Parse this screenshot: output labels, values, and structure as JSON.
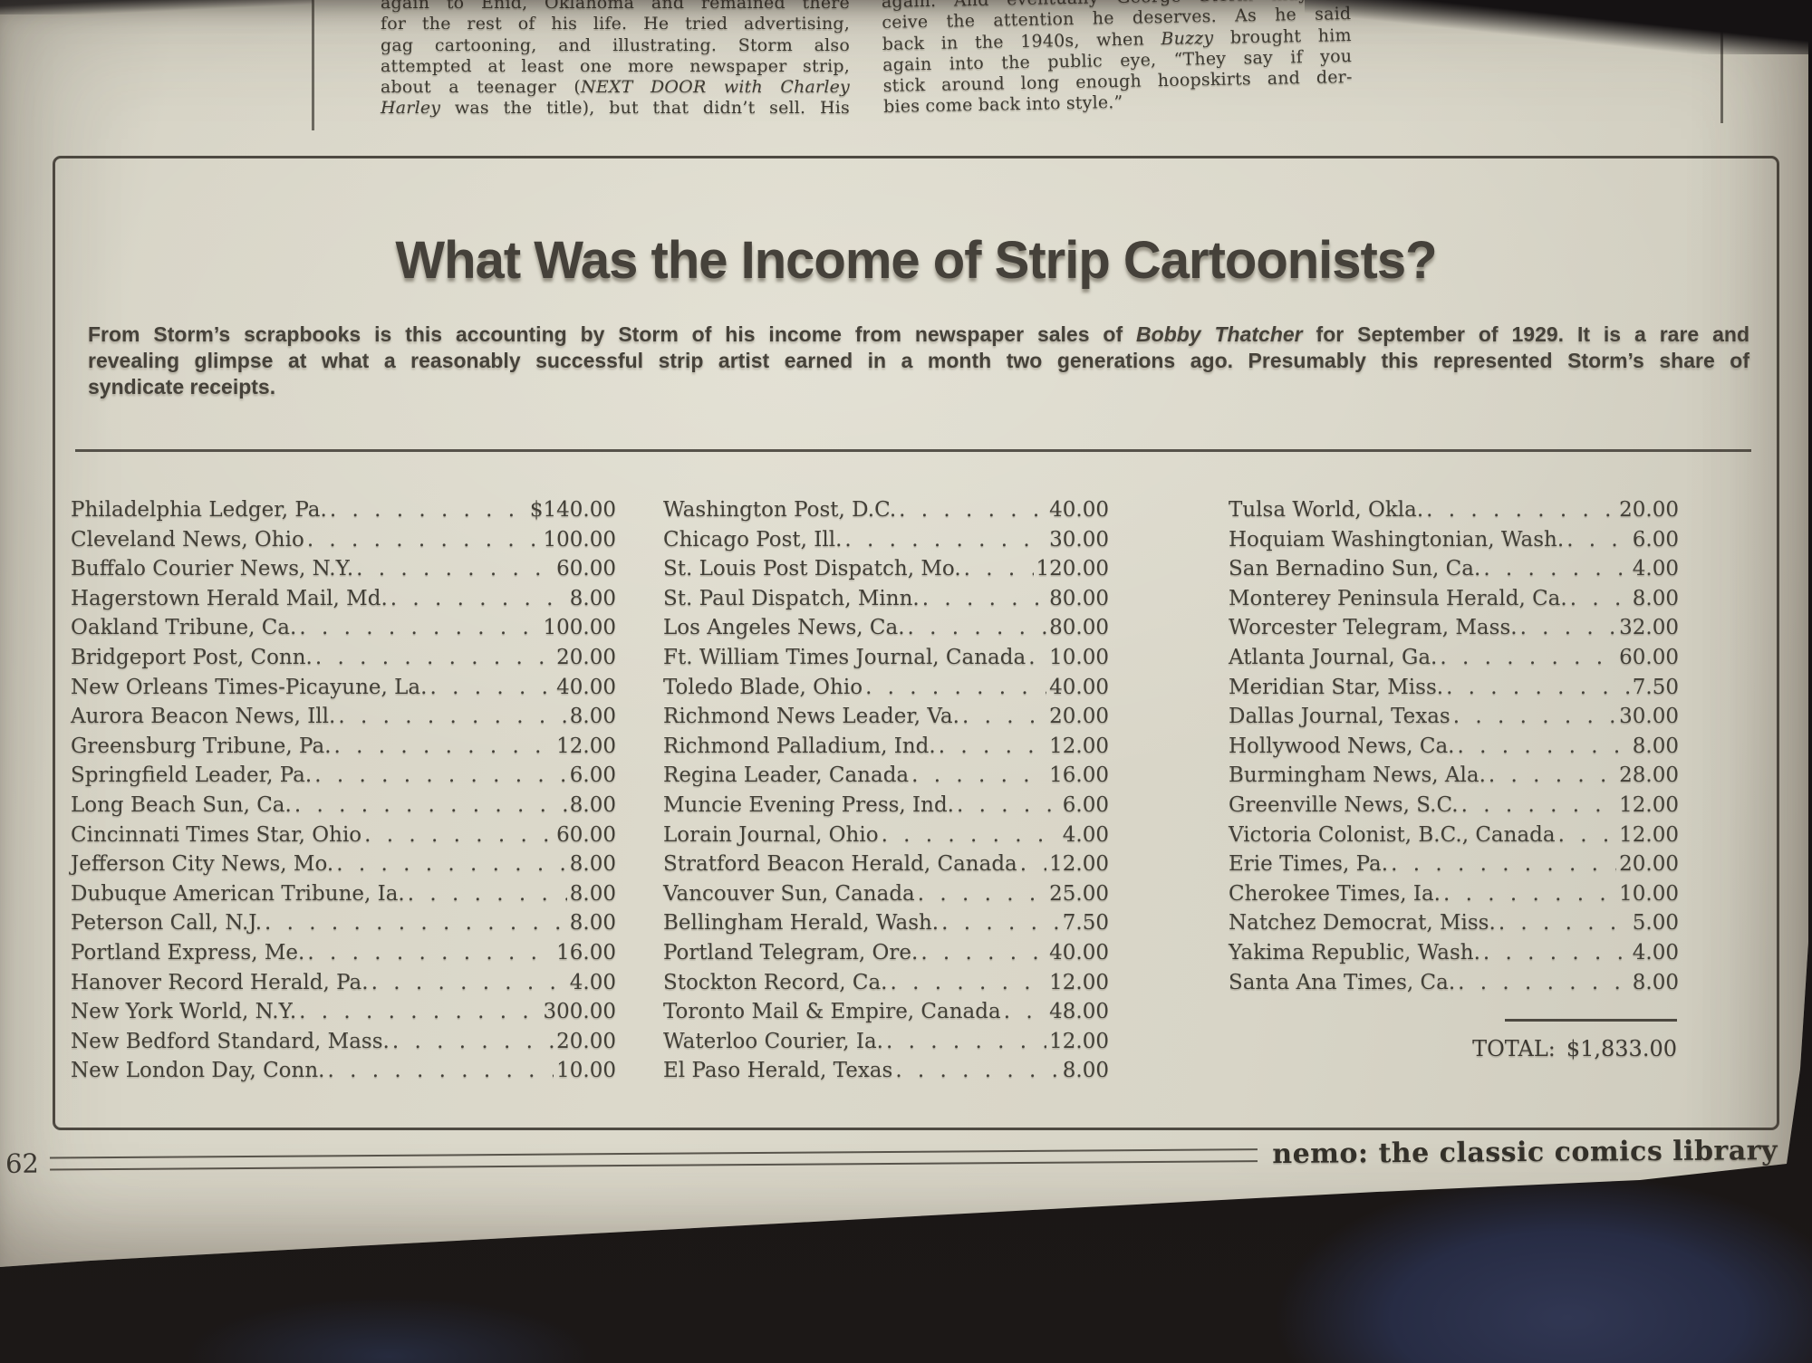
{
  "colors": {
    "paper": "#d8d5c7",
    "ink": "#45413a",
    "background": "#141112",
    "fabric_blue": "#2c3148"
  },
  "top_article": {
    "left_lines": [
      "again to Enid, Oklahoma and remained there",
      "for the rest of his life. He tried advertising,",
      "gag cartooning, and illustrating. Storm also",
      "attempted at least one more newspaper strip,",
      "about a teenager (*NEXT DOOR* *with* *Charley*",
      "*Harley* was the title), but that didn’t sell. His"
    ],
    "right_lines": [
      "again. And eventually George Storm may re-",
      "ceive the attention he deserves. As he said",
      "back in the 1940s, when *Buzzy* brought him",
      "again into the public eye, “They say if you",
      "stick around long enough hoopskirts and der-",
      "bies come back into style.”"
    ]
  },
  "income_box": {
    "title": "What Was the Income of Strip Cartoonists?",
    "intro_lines": [
      "From Storm’s scrapbooks is this accounting by Storm of his income from newspaper sales of *Bobby Thatcher* for September of 1929. It is a rare and",
      "revealing glimpse at what a reasonably successful strip artist earned in a month two generations ago. Presumably this represented Storm’s share of",
      "syndicate receipts."
    ],
    "columns": [
      [
        {
          "name": "Philadelphia Ledger, Pa.",
          "amount": "$140.00"
        },
        {
          "name": "Cleveland News, Ohio",
          "amount": "100.00"
        },
        {
          "name": "Buffalo Courier News, N.Y.",
          "amount": "60.00"
        },
        {
          "name": "Hagerstown Herald Mail, Md.",
          "amount": "8.00"
        },
        {
          "name": "Oakland Tribune, Ca.",
          "amount": "100.00"
        },
        {
          "name": "Bridgeport Post, Conn.",
          "amount": "20.00"
        },
        {
          "name": "New Orleans Times-Picayune, La.",
          "amount": "40.00"
        },
        {
          "name": "Aurora Beacon News, Ill.",
          "amount": "8.00"
        },
        {
          "name": "Greensburg Tribune, Pa.",
          "amount": "12.00"
        },
        {
          "name": "Springfield Leader, Pa.",
          "amount": "6.00"
        },
        {
          "name": "Long Beach Sun, Ca.",
          "amount": "8.00"
        },
        {
          "name": "Cincinnati Times Star, Ohio",
          "amount": "60.00"
        },
        {
          "name": "Jefferson City News, Mo.",
          "amount": "8.00"
        },
        {
          "name": "Dubuque American Tribune, Ia.",
          "amount": "8.00"
        },
        {
          "name": "Peterson Call, N.J.",
          "amount": "8.00"
        },
        {
          "name": "Portland Express, Me.",
          "amount": "16.00"
        },
        {
          "name": "Hanover Record Herald, Pa.",
          "amount": "4.00"
        },
        {
          "name": "New York World, N.Y.",
          "amount": "300.00"
        },
        {
          "name": "New Bedford Standard, Mass.",
          "amount": "20.00"
        },
        {
          "name": "New London Day, Conn.",
          "amount": "10.00"
        }
      ],
      [
        {
          "name": "Washington Post, D.C.",
          "amount": "40.00"
        },
        {
          "name": "Chicago Post, Ill.",
          "amount": "30.00"
        },
        {
          "name": "St. Louis Post Dispatch, Mo.",
          "amount": "120.00"
        },
        {
          "name": "St. Paul Dispatch, Minn.",
          "amount": "80.00"
        },
        {
          "name": "Los Angeles News, Ca.",
          "amount": "80.00"
        },
        {
          "name": "Ft. William Times Journal, Canada",
          "amount": "10.00"
        },
        {
          "name": "Toledo Blade, Ohio",
          "amount": "40.00"
        },
        {
          "name": "Richmond News Leader, Va.",
          "amount": "20.00"
        },
        {
          "name": "Richmond Palladium, Ind.",
          "amount": "12.00"
        },
        {
          "name": "Regina Leader, Canada",
          "amount": "16.00"
        },
        {
          "name": "Muncie Evening Press, Ind.",
          "amount": "6.00"
        },
        {
          "name": "Lorain Journal, Ohio",
          "amount": "4.00"
        },
        {
          "name": "Stratford Beacon Herald, Canada",
          "amount": "12.00"
        },
        {
          "name": "Vancouver Sun, Canada",
          "amount": "25.00"
        },
        {
          "name": "Bellingham Herald, Wash.",
          "amount": "7.50"
        },
        {
          "name": "Portland Telegram, Ore.",
          "amount": "40.00"
        },
        {
          "name": "Stockton Record, Ca.",
          "amount": "12.00"
        },
        {
          "name": "Toronto Mail & Empire, Canada",
          "amount": "48.00"
        },
        {
          "name": "Waterloo Courier, Ia.",
          "amount": "12.00"
        },
        {
          "name": "El Paso Herald, Texas",
          "amount": "8.00"
        }
      ],
      [
        {
          "name": "Tulsa World, Okla.",
          "amount": "20.00"
        },
        {
          "name": "Hoquiam Washingtonian, Wash.",
          "amount": "6.00"
        },
        {
          "name": "San Bernadino Sun, Ca.",
          "amount": "4.00"
        },
        {
          "name": "Monterey Peninsula Herald, Ca.",
          "amount": "8.00"
        },
        {
          "name": "Worcester Telegram, Mass.",
          "amount": "32.00"
        },
        {
          "name": "Atlanta Journal, Ga.",
          "amount": "60.00"
        },
        {
          "name": "Meridian Star, Miss.",
          "amount": "7.50"
        },
        {
          "name": "Dallas Journal, Texas",
          "amount": "30.00"
        },
        {
          "name": "Hollywood News, Ca.",
          "amount": "8.00"
        },
        {
          "name": "Burmingham News, Ala.",
          "amount": "28.00"
        },
        {
          "name": "Greenville News, S.C.",
          "amount": "12.00"
        },
        {
          "name": "Victoria Colonist, B.C., Canada",
          "amount": "12.00"
        },
        {
          "name": "Erie Times, Pa.",
          "amount": "20.00"
        },
        {
          "name": "Cherokee Times, Ia.",
          "amount": "10.00"
        },
        {
          "name": "Natchez Democrat, Miss.",
          "amount": "5.00"
        },
        {
          "name": "Yakima Republic, Wash.",
          "amount": "4.00"
        },
        {
          "name": "Santa Ana Times, Ca.",
          "amount": "8.00"
        }
      ]
    ],
    "total_label": "TOTAL:",
    "total_value": "$1,833.00"
  },
  "footer": {
    "page_number": "62",
    "magazine_title": "nemo: the classic comics library"
  }
}
